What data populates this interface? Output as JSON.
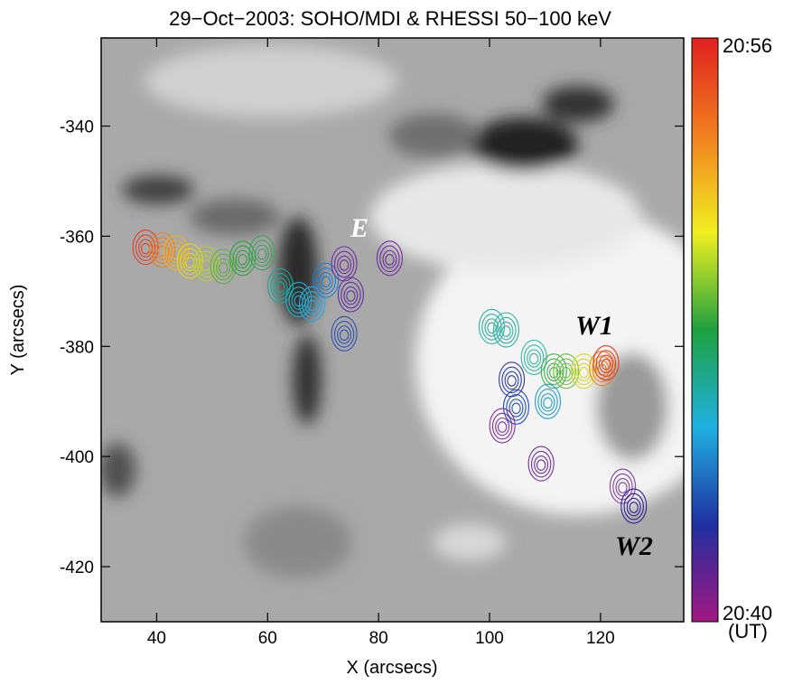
{
  "chart_data": {
    "type": "image-contour",
    "title": "29−Oct−2003: SOHO/MDI & RHESSI 50−100 keV",
    "x_label": "X (arcsecs)",
    "y_label": "Y (arcsecs)",
    "xlim": [
      30,
      135
    ],
    "ylim": [
      -430,
      -324
    ],
    "xticks": [
      40,
      60,
      80,
      100,
      120
    ],
    "yticks": [
      -420,
      -400,
      -380,
      -360,
      -340
    ],
    "annotations": [
      "E",
      "W1",
      "W2"
    ],
    "colorbar": {
      "top_label": "20:56",
      "bottom_label": "20:40",
      "unit_label": "(UT)",
      "colors": [
        "#e02020",
        "#f08020",
        "#f0f020",
        "#20a040",
        "#20b0e0",
        "#2030a0",
        "#a01880"
      ]
    },
    "points": [
      {
        "x": 38,
        "y": -362,
        "color": "#e0402a"
      },
      {
        "x": 41,
        "y": -362.5,
        "color": "#f08020"
      },
      {
        "x": 43.5,
        "y": -363,
        "color": "#f0b020"
      },
      {
        "x": 46,
        "y": -364.5,
        "color": "#e0d820"
      },
      {
        "x": 49,
        "y": -365,
        "color": "#b8d030"
      },
      {
        "x": 52,
        "y": -365.5,
        "color": "#60b040"
      },
      {
        "x": 55.5,
        "y": -364,
        "color": "#30a040"
      },
      {
        "x": 59,
        "y": -363,
        "color": "#40a060"
      },
      {
        "x": 62.3,
        "y": -369,
        "color": "#20a890"
      },
      {
        "x": 65.6,
        "y": -371.5,
        "color": "#20b0c8"
      },
      {
        "x": 68,
        "y": -372.3,
        "color": "#30a8e0"
      },
      {
        "x": 70.5,
        "y": -368,
        "color": "#2080d0"
      },
      {
        "x": 73.8,
        "y": -377.7,
        "color": "#3050b0"
      },
      {
        "x": 73.8,
        "y": -365,
        "color": "#7030a0"
      },
      {
        "x": 75,
        "y": -370.6,
        "color": "#6030a0"
      },
      {
        "x": 82,
        "y": -364,
        "color": "#7030a0"
      },
      {
        "x": 100.4,
        "y": -376.4,
        "color": "#30b0a0"
      },
      {
        "x": 103,
        "y": -377,
        "color": "#30b0a0"
      },
      {
        "x": 108,
        "y": -382,
        "color": "#30b8a0"
      },
      {
        "x": 111.6,
        "y": -384.5,
        "color": "#40b050"
      },
      {
        "x": 113.8,
        "y": -384.5,
        "color": "#70c040"
      },
      {
        "x": 117,
        "y": -384.5,
        "color": "#d8d820"
      },
      {
        "x": 120.3,
        "y": -384,
        "color": "#f08020"
      },
      {
        "x": 121,
        "y": -383,
        "color": "#e04020"
      },
      {
        "x": 110.5,
        "y": -390,
        "color": "#20a0d0"
      },
      {
        "x": 104.8,
        "y": -391,
        "color": "#2050c0"
      },
      {
        "x": 104,
        "y": -386,
        "color": "#3040a0"
      },
      {
        "x": 102.3,
        "y": -394.4,
        "color": "#8030a0"
      },
      {
        "x": 109.3,
        "y": -401.3,
        "color": "#7030a0"
      },
      {
        "x": 124,
        "y": -405.4,
        "color": "#8040a0"
      },
      {
        "x": 126,
        "y": -409,
        "color": "#302090"
      }
    ]
  }
}
